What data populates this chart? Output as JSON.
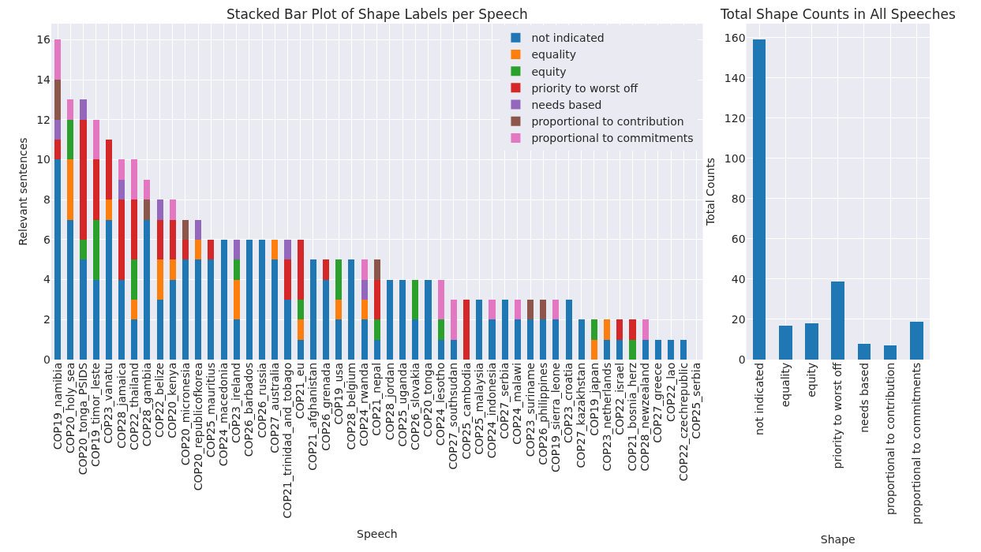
{
  "chart_data": [
    {
      "type": "bar",
      "stacked": true,
      "title": "Stacked Bar Plot of Shape Labels per Speech",
      "xlabel": "Speech",
      "ylabel": "Relevant sentences",
      "ylim": [
        0,
        16.8
      ],
      "yticks": [
        0,
        2,
        4,
        6,
        8,
        10,
        12,
        14,
        16
      ],
      "grid": true,
      "legend": "top right",
      "categories": [
        "COP19_namibia",
        "COP20_holy_sea",
        "COP20_tonga_PSIDS",
        "COP19_timor_leste",
        "COP23_vanatu",
        "COP28_jamaica",
        "COP22_thailand",
        "COP28_gambia",
        "COP22_belize",
        "COP20_kenya",
        "COP20_micronesia",
        "COP20_republicofkorea",
        "COP25_mauritius",
        "COP24_macedonia",
        "COP23_ireland",
        "COP26_barbados",
        "COP26_russia",
        "COP27_australia",
        "COP21_trinidad_and_tobago",
        "COP21_eu",
        "COP21_afghanistan",
        "COP26_grenada",
        "COP19_usa",
        "COP28_belgium",
        "COP24_rwanda",
        "COP21_nepal",
        "COP28_jordan",
        "COP25_uganda",
        "COP26_slovakia",
        "COP20_tonga",
        "COP24_lesotho",
        "COP27_southsudan",
        "COP25_cambodia",
        "COP25_malaysia",
        "COP24_indonesia",
        "COP27_serbia",
        "COP24_malawi",
        "COP23_suriname",
        "COP26_philippines",
        "COP19_sierra_leone",
        "COP23_croatia",
        "COP27_kazakhstan",
        "COP19_japan",
        "COP23_netherlands",
        "COP22_israel",
        "COP21_bosnia_herz",
        "COP28_newzealand",
        "COP27_greece",
        "COP22_lao",
        "COP22_czechrepublic",
        "COP25_serbia"
      ],
      "series": [
        {
          "name": "not indicated",
          "color": "#1f77b4",
          "values": [
            10,
            7,
            5,
            4,
            7,
            4,
            2,
            7,
            3,
            4,
            5,
            5,
            5,
            6,
            2,
            6,
            6,
            5,
            3,
            1,
            5,
            4,
            2,
            5,
            2,
            1,
            4,
            4,
            2,
            4,
            1,
            1,
            0,
            3,
            2,
            3,
            2,
            2,
            2,
            2,
            3,
            2,
            0,
            1,
            1,
            0,
            1,
            1,
            1,
            1,
            0
          ]
        },
        {
          "name": "equality",
          "color": "#ff7f0e",
          "values": [
            0,
            3,
            0,
            0,
            1,
            0,
            1,
            0,
            2,
            1,
            0,
            1,
            0,
            0,
            2,
            0,
            0,
            1,
            0,
            1,
            0,
            0,
            1,
            0,
            1,
            0,
            0,
            0,
            0,
            0,
            0,
            0,
            0,
            0,
            0,
            0,
            0,
            0,
            0,
            0,
            0,
            0,
            1,
            1,
            0,
            0,
            0,
            0,
            0,
            0,
            0
          ]
        },
        {
          "name": "equity",
          "color": "#2ca02c",
          "values": [
            0,
            2,
            1,
            3,
            0,
            0,
            2,
            0,
            0,
            0,
            0,
            0,
            0,
            0,
            1,
            0,
            0,
            0,
            0,
            1,
            0,
            0,
            2,
            0,
            0,
            1,
            0,
            0,
            2,
            0,
            1,
            0,
            0,
            0,
            0,
            0,
            0,
            0,
            0,
            0,
            0,
            0,
            1,
            0,
            0,
            1,
            0,
            0,
            0,
            0,
            0
          ]
        },
        {
          "name": "priority to worst off",
          "color": "#d62728",
          "values": [
            1,
            0,
            6,
            3,
            3,
            4,
            3,
            0,
            2,
            2,
            1,
            0,
            1,
            0,
            0,
            0,
            0,
            0,
            2,
            3,
            0,
            1,
            0,
            0,
            0,
            2,
            0,
            0,
            0,
            0,
            0,
            0,
            3,
            0,
            0,
            0,
            0,
            0,
            0,
            0,
            0,
            0,
            0,
            0,
            1,
            1,
            0,
            0,
            0,
            0,
            0
          ]
        },
        {
          "name": "needs based",
          "color": "#9467bd",
          "values": [
            1,
            0,
            1,
            0,
            0,
            1,
            0,
            0,
            1,
            0,
            0,
            1,
            0,
            0,
            1,
            0,
            0,
            0,
            1,
            0,
            0,
            0,
            0,
            0,
            1,
            0,
            0,
            0,
            0,
            0,
            0,
            0,
            0,
            0,
            0,
            0,
            0,
            0,
            0,
            0,
            0,
            0,
            0,
            0,
            0,
            0,
            0,
            0,
            0,
            0,
            0
          ]
        },
        {
          "name": "proportional to contribution",
          "color": "#8c564b",
          "values": [
            2,
            0,
            0,
            0,
            0,
            0,
            0,
            1,
            0,
            0,
            1,
            0,
            0,
            0,
            0,
            0,
            0,
            0,
            0,
            0,
            0,
            0,
            0,
            0,
            0,
            1,
            0,
            0,
            0,
            0,
            0,
            0,
            0,
            0,
            0,
            0,
            0,
            1,
            1,
            0,
            0,
            0,
            0,
            0,
            0,
            0,
            0,
            0,
            0,
            0,
            0
          ]
        },
        {
          "name": "proportional to commitments",
          "color": "#e377c2",
          "values": [
            2,
            1,
            0,
            2,
            0,
            1,
            2,
            1,
            0,
            1,
            0,
            0,
            0,
            0,
            0,
            0,
            0,
            0,
            0,
            0,
            0,
            0,
            0,
            0,
            1,
            0,
            0,
            0,
            0,
            0,
            2,
            2,
            0,
            0,
            1,
            0,
            1,
            0,
            0,
            1,
            0,
            0,
            0,
            0,
            0,
            0,
            1,
            0,
            0,
            0,
            0
          ]
        }
      ]
    },
    {
      "type": "bar",
      "title": "Total Shape Counts in All Speeches",
      "xlabel": "Shape",
      "ylabel": "Total Counts",
      "ylim": [
        0,
        167
      ],
      "yticks": [
        0,
        20,
        40,
        60,
        80,
        100,
        120,
        140,
        160
      ],
      "grid": true,
      "categories": [
        "not indicated",
        "equality",
        "equity",
        "priority to worst off",
        "needs based",
        "proportional to contribution",
        "proportional to commitments"
      ],
      "series": [
        {
          "color": "#1f77b4",
          "values": [
            159,
            17,
            18,
            39,
            8,
            7,
            19
          ]
        }
      ]
    }
  ]
}
